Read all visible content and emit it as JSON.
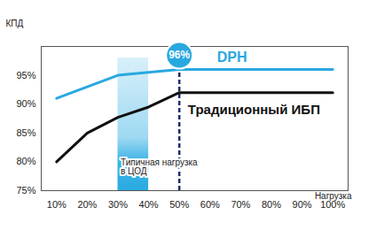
{
  "chart_data": {
    "type": "line",
    "y_label": "КПД",
    "x_label": "Нагрузка",
    "x": [
      10,
      20,
      30,
      40,
      50,
      60,
      70,
      80,
      90,
      100
    ],
    "xlim": [
      5,
      105
    ],
    "xticks": [
      {
        "value": 10,
        "label": "10%"
      },
      {
        "value": 20,
        "label": "20%"
      },
      {
        "value": 30,
        "label": "30%"
      },
      {
        "value": 40,
        "label": "40%"
      },
      {
        "value": 50,
        "label": "50%"
      },
      {
        "value": 60,
        "label": "60%"
      },
      {
        "value": 70,
        "label": "70%"
      },
      {
        "value": 80,
        "label": "80%"
      },
      {
        "value": 90,
        "label": "90%"
      },
      {
        "value": 100,
        "label": "100%"
      }
    ],
    "ylim": [
      75,
      100
    ],
    "yticks": [
      {
        "value": 75,
        "label": "75%"
      },
      {
        "value": 80,
        "label": "80%"
      },
      {
        "value": 85,
        "label": "85%"
      },
      {
        "value": 90,
        "label": "90%"
      },
      {
        "value": 95,
        "label": "95%"
      }
    ],
    "grid": false,
    "series": [
      {
        "name": "DPH",
        "color": "#29a8e0",
        "values": [
          91,
          93,
          95,
          95.5,
          96,
          96,
          96,
          96,
          96,
          96
        ]
      },
      {
        "name": "Традиционный ИБП",
        "color": "#111111",
        "values": [
          80,
          85,
          87.7,
          89.5,
          92,
          92,
          92,
          92,
          92,
          92
        ]
      }
    ],
    "highlight": {
      "x": [
        30,
        40
      ],
      "y": [
        75,
        98
      ],
      "label": "Типичная нагрузка\nв ЦОД",
      "color": "#29abe2"
    },
    "reference_line": {
      "x": 50,
      "color": "#1f2a6e",
      "line_style": "dashed"
    },
    "annotation": {
      "text": "96%",
      "value": 96,
      "color": "#29a8e0"
    }
  }
}
